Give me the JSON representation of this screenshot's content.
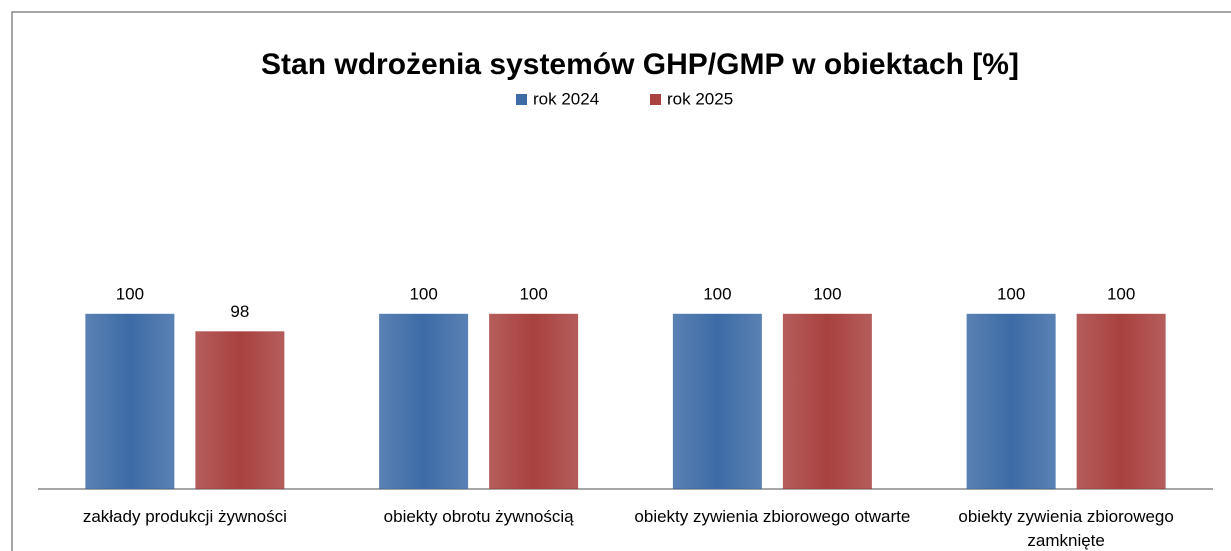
{
  "chart_data": {
    "type": "bar",
    "title": "Stan wdrożenia systemów GHP/GMP w obiektach [%]",
    "categories": [
      "zakłady produkcji żywności",
      "obiekty obrotu żywnością",
      "obiekty zywienia zbiorowego otwarte",
      "obiekty zywienia zbiorowego zamknięte"
    ],
    "series": [
      {
        "name": "rok 2024",
        "color": "#3d6ba6",
        "values": [
          100,
          100,
          100,
          100
        ]
      },
      {
        "name": "rok 2025",
        "color": "#a8413f",
        "values": [
          98,
          100,
          100,
          100
        ]
      }
    ],
    "ylim": [
      80,
      105
    ],
    "legend": "top"
  }
}
